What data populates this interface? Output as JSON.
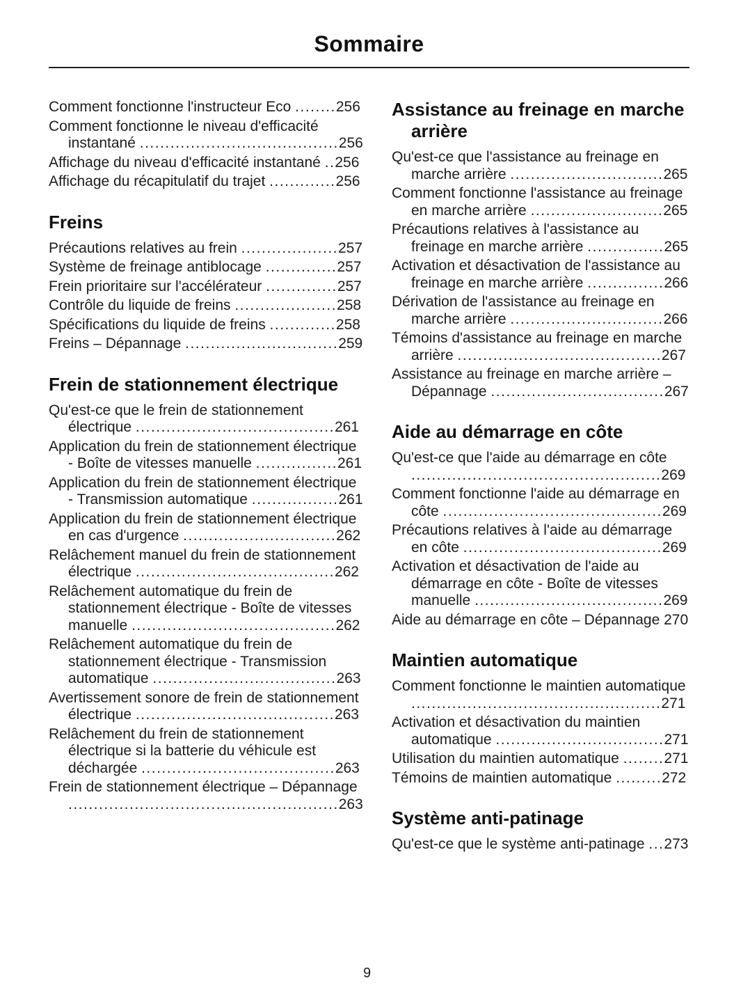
{
  "doc": {
    "title": "Sommaire",
    "footer_page_number": "9"
  },
  "toc": {
    "left_column": [
      {
        "heading": "",
        "entries": [
          {
            "text": "Comment fonctionne l'instructeur Eco",
            "page": "256"
          },
          {
            "text": "Comment fonctionne le niveau d'efficacité instantané",
            "page": "256"
          },
          {
            "text": "Affichage du niveau d'efficacité instantané",
            "page": "256"
          },
          {
            "text": "Affichage du récapitulatif du trajet",
            "page": "256"
          }
        ]
      },
      {
        "heading": "Freins",
        "entries": [
          {
            "text": "Précautions relatives au frein",
            "page": "257"
          },
          {
            "text": "Système de freinage antiblocage",
            "page": "257"
          },
          {
            "text": "Frein prioritaire sur l'accélérateur",
            "page": "257"
          },
          {
            "text": "Contrôle du liquide de freins",
            "page": "258"
          },
          {
            "text": "Spécifications du liquide de freins",
            "page": "258"
          },
          {
            "text": "Freins – Dépannage",
            "page": "259"
          }
        ]
      },
      {
        "heading": "Frein de stationnement électrique",
        "entries": [
          {
            "text": "Qu'est-ce que le frein de stationnement électrique",
            "page": "261"
          },
          {
            "text": "Application du frein de stationnement électrique - Boîte de vitesses manuelle",
            "page": "261"
          },
          {
            "text": "Application du frein de stationnement électrique - Transmission automatique",
            "page": "261"
          },
          {
            "text": "Application du frein de stationnement électrique en cas d'urgence",
            "page": "262"
          },
          {
            "text": "Relâchement manuel du frein de stationnement électrique",
            "page": "262"
          },
          {
            "text": "Relâchement automatique du frein de stationnement électrique - Boîte de vitesses manuelle",
            "page": "262"
          },
          {
            "text": "Relâchement automatique du frein de stationnement électrique - Transmission automatique",
            "page": "263"
          },
          {
            "text": "Avertissement sonore de frein de stationnement électrique",
            "page": "263"
          },
          {
            "text": "Relâchement du frein de stationnement électrique si la batterie du véhicule est déchargée",
            "page": "263"
          },
          {
            "text": "Frein de stationnement électrique – Dépannage",
            "page": "263"
          }
        ]
      }
    ],
    "right_column": [
      {
        "heading": "Assistance au freinage en marche arrière",
        "entries": [
          {
            "text": "Qu'est-ce que l'assistance au freinage en marche arrière",
            "page": "265"
          },
          {
            "text": "Comment fonctionne l'assistance au freinage en marche arrière",
            "page": "265"
          },
          {
            "text": "Précautions relatives à l'assistance au freinage en marche arrière",
            "page": "265"
          },
          {
            "text": "Activation et désactivation de l'assistance au freinage en marche arrière",
            "page": "266"
          },
          {
            "text": "Dérivation de l'assistance au freinage en marche arrière",
            "page": "266"
          },
          {
            "text": "Témoins d'assistance au freinage en marche arrière",
            "page": "267"
          },
          {
            "text": "Assistance au freinage en marche arrière – Dépannage",
            "page": "267"
          }
        ]
      },
      {
        "heading": "Aide au démarrage en côte",
        "entries": [
          {
            "text": "Qu'est-ce que l'aide au démarrage en côte",
            "page": "269"
          },
          {
            "text": "Comment fonctionne l'aide au démarrage en côte",
            "page": "269"
          },
          {
            "text": "Précautions relatives à l'aide au démarrage en côte",
            "page": "269"
          },
          {
            "text": "Activation et désactivation de l'aide au démarrage en côte - Boîte de vitesses manuelle",
            "page": "269"
          },
          {
            "text": "Aide au démarrage en côte – Dépannage",
            "page": "270"
          }
        ]
      },
      {
        "heading": "Maintien automatique",
        "entries": [
          {
            "text": "Comment fonctionne le maintien automatique",
            "page": "271"
          },
          {
            "text": "Activation et désactivation du maintien automatique",
            "page": "271"
          },
          {
            "text": "Utilisation du maintien automatique",
            "page": "271"
          },
          {
            "text": "Témoins de maintien automatique",
            "page": "272"
          }
        ]
      },
      {
        "heading": "Système anti-patinage",
        "entries": [
          {
            "text": "Qu'est-ce que le système anti-patinage",
            "page": "273"
          }
        ]
      }
    ]
  }
}
